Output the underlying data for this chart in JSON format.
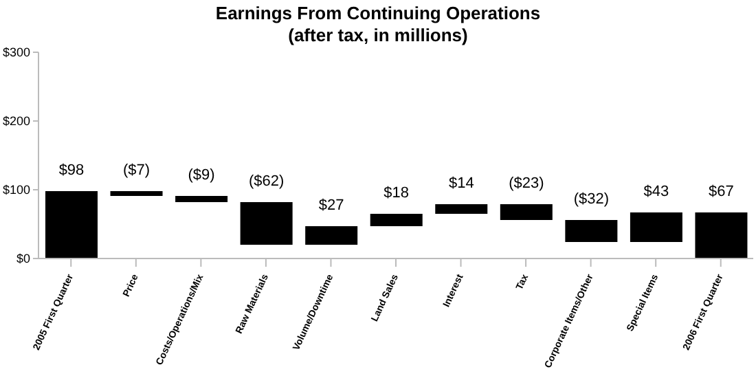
{
  "chart_data": {
    "type": "bar",
    "title": "Earnings From Continuing Operations",
    "subtitle": "(after tax, in millions)",
    "categories": [
      "2005 First Quarter",
      "Price",
      "Costs/Operations/Mix",
      "Raw Materials",
      "Volume/Downtime",
      "Land Sales",
      "Interest",
      "Tax",
      "Corporate Items/Other",
      "Special Items",
      "2006 First Quarter"
    ],
    "values": [
      98,
      -7,
      -9,
      -62,
      27,
      18,
      14,
      -23,
      -32,
      43,
      67
    ],
    "base": [
      0,
      98,
      91,
      82,
      20,
      47,
      65,
      79,
      56,
      24,
      0
    ],
    "value_labels": [
      "$98",
      "($7)",
      "($9)",
      "($62)",
      "$27",
      "$18",
      "$14",
      "($23)",
      "($32)",
      "$43",
      "$67"
    ],
    "color": "#000000",
    "ylim": [
      0,
      300
    ],
    "yticks": [
      {
        "value": 0,
        "label": "$0"
      },
      {
        "value": 100,
        "label": "$100"
      },
      {
        "value": 200,
        "label": "$200"
      },
      {
        "value": 300,
        "label": "$300"
      }
    ],
    "grid": false,
    "legend": false
  }
}
